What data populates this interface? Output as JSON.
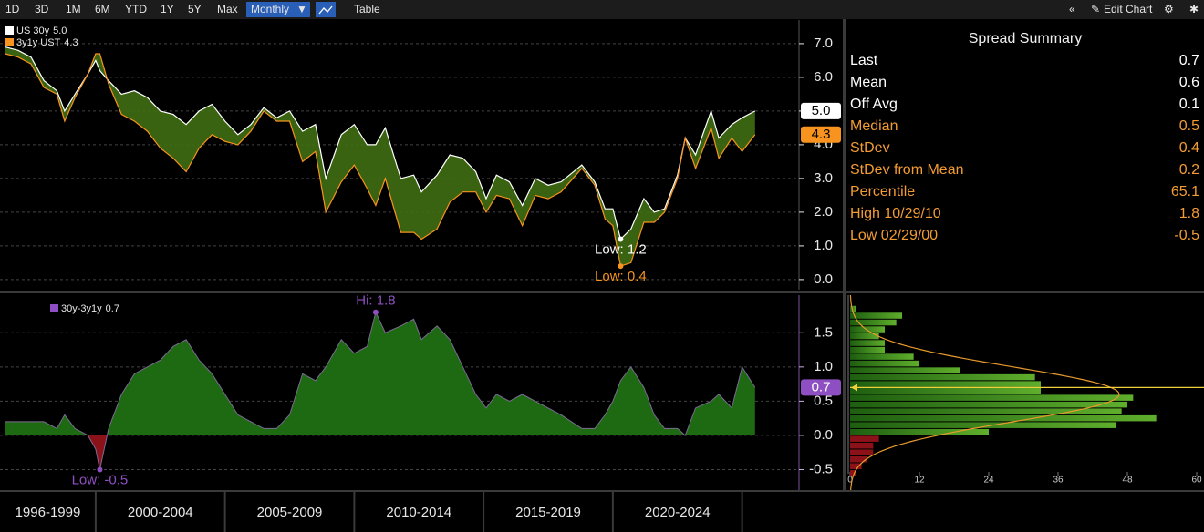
{
  "toolbar": {
    "periods": [
      "1D",
      "3D",
      "1M",
      "6M",
      "YTD",
      "1Y",
      "5Y",
      "Max"
    ],
    "frequency": "Monthly",
    "view": "Table",
    "edit": "Edit Chart"
  },
  "summary": {
    "title": "Spread Summary",
    "rows": [
      {
        "label": "Last",
        "value": 0.7,
        "color": "#ffffff"
      },
      {
        "label": "Mean",
        "value": 0.6,
        "color": "#ffffff"
      },
      {
        "label": "Off Avg",
        "value": 0.1,
        "color": "#ffffff"
      },
      {
        "label": "Median",
        "value": 0.5,
        "color": "#f39c34"
      },
      {
        "label": "StDev",
        "value": 0.4,
        "color": "#f39c34"
      },
      {
        "label": "StDev from Mean",
        "value": 0.2,
        "color": "#f39c34"
      },
      {
        "label": "Percentile",
        "value": 65.1,
        "color": "#f39c34"
      },
      {
        "label": "High 10/29/10",
        "value": 1.8,
        "color": "#f39c34"
      },
      {
        "label": "Low 02/29/00",
        "value": -0.5,
        "color": "#f39c34"
      }
    ]
  },
  "chart_data": [
    {
      "type": "line",
      "x": [
        1996.5,
        1997.0,
        1997.5,
        1998.0,
        1998.5,
        1998.8,
        1999.2,
        1999.7,
        2000.0,
        2000.16,
        2000.5,
        2001.0,
        2001.5,
        2002.0,
        2002.5,
        2003.0,
        2003.5,
        2004.0,
        2004.5,
        2005.0,
        2005.5,
        2006.0,
        2006.5,
        2007.0,
        2007.5,
        2008.0,
        2008.5,
        2008.9,
        2009.5,
        2010.0,
        2010.5,
        2010.83,
        2011.2,
        2011.8,
        2012.3,
        2012.6,
        2013.2,
        2013.7,
        2014.2,
        2014.7,
        2015.1,
        2015.5,
        2016.0,
        2016.5,
        2017.0,
        2017.5,
        2018.0,
        2018.8,
        2019.3,
        2019.7,
        2020.0,
        2020.3,
        2020.7,
        2021.2,
        2021.6,
        2022.0,
        2022.5,
        2022.8,
        2023.2,
        2023.8,
        2024.1,
        2024.6,
        2025.0,
        2025.5
      ],
      "xlim": [
        1996.3,
        2027.2
      ],
      "xticks": [
        2000,
        2005,
        2010,
        2015,
        2020,
        2025
      ],
      "period_labels": [
        "1996-1999",
        "2000-2004",
        "2005-2009",
        "2010-2014",
        "2015-2019",
        "2020-2024"
      ],
      "ylim": [
        -0.3,
        7.7
      ],
      "yticks": [
        {
          "value": 0,
          "label": "0.0"
        },
        {
          "value": 1,
          "label": "1.0"
        },
        {
          "value": 2,
          "label": "2.0"
        },
        {
          "value": 3,
          "label": "3.0"
        },
        {
          "value": 4,
          "label": "4.0"
        },
        {
          "value": 5,
          "label": "5.0"
        },
        {
          "value": 6,
          "label": "6.0"
        },
        {
          "value": 7,
          "label": "7.0"
        }
      ],
      "grid": true,
      "fill_color": "#3f6e12",
      "series": [
        {
          "name": "US 30y",
          "color": "#ffffff",
          "last_label": "5.0",
          "low_label": "Low: 1.2",
          "values": [
            6.9,
            6.8,
            6.6,
            5.9,
            5.6,
            5.0,
            5.5,
            6.1,
            6.5,
            6.2,
            5.9,
            5.5,
            5.6,
            5.4,
            5.0,
            4.9,
            4.6,
            5.0,
            5.2,
            4.7,
            4.3,
            4.6,
            5.1,
            4.8,
            5.0,
            4.4,
            4.6,
            3.0,
            4.3,
            4.6,
            4.0,
            4.0,
            4.5,
            3.0,
            3.1,
            2.6,
            3.1,
            3.7,
            3.6,
            3.2,
            2.4,
            3.1,
            2.9,
            2.2,
            3.0,
            2.8,
            2.9,
            3.4,
            2.9,
            2.1,
            2.1,
            1.2,
            1.5,
            2.4,
            2.0,
            2.1,
            3.1,
            4.2,
            3.7,
            5.0,
            4.2,
            4.6,
            4.8,
            5.0
          ]
        },
        {
          "name": "3y1y UST",
          "color": "#f7931e",
          "last_label": "4.3",
          "low_label": "Low: 0.4",
          "values": [
            6.7,
            6.6,
            6.4,
            5.7,
            5.5,
            4.7,
            5.4,
            6.1,
            6.7,
            6.7,
            5.8,
            4.9,
            4.7,
            4.4,
            3.9,
            3.6,
            3.2,
            3.9,
            4.3,
            4.1,
            4.0,
            4.4,
            5.0,
            4.7,
            4.7,
            3.5,
            3.8,
            2.0,
            2.9,
            3.4,
            2.7,
            2.2,
            3.0,
            1.4,
            1.4,
            1.2,
            1.5,
            2.3,
            2.6,
            2.6,
            2.0,
            2.5,
            2.4,
            1.6,
            2.5,
            2.4,
            2.6,
            3.3,
            2.8,
            1.8,
            1.6,
            0.4,
            0.5,
            1.7,
            1.7,
            2.0,
            3.0,
            4.2,
            3.3,
            4.5,
            3.6,
            4.2,
            3.8,
            4.3
          ]
        }
      ]
    },
    {
      "type": "area",
      "ylim": [
        -0.8,
        2.05
      ],
      "yticks": [
        {
          "value": -0.5,
          "label": "-0.5"
        },
        {
          "value": 0,
          "label": "0.0"
        },
        {
          "value": 0.5,
          "label": "0.5"
        },
        {
          "value": 1,
          "label": "1.0"
        },
        {
          "value": 1.5,
          "label": "1.5"
        }
      ],
      "grid": true,
      "positive_color": "#1d6a12",
      "negative_color": "#8a1218",
      "series": [
        {
          "name": "30y-3y1y",
          "color": "#8e4fc2",
          "last_label": "0.7",
          "high_label": "Hi: 1.8",
          "low_label": "Low: -0.5",
          "values": [
            0.2,
            0.2,
            0.2,
            0.2,
            0.1,
            0.3,
            0.1,
            0.0,
            -0.2,
            -0.5,
            0.1,
            0.6,
            0.9,
            1.0,
            1.1,
            1.3,
            1.4,
            1.1,
            0.9,
            0.6,
            0.3,
            0.2,
            0.1,
            0.1,
            0.3,
            0.9,
            0.8,
            1.0,
            1.4,
            1.2,
            1.3,
            1.8,
            1.5,
            1.6,
            1.7,
            1.4,
            1.6,
            1.4,
            1.0,
            0.6,
            0.4,
            0.6,
            0.5,
            0.6,
            0.5,
            0.4,
            0.3,
            0.1,
            0.1,
            0.3,
            0.5,
            0.8,
            1.0,
            0.7,
            0.3,
            0.1,
            0.1,
            0.0,
            0.4,
            0.5,
            0.6,
            0.4,
            1.0,
            0.7
          ]
        }
      ]
    },
    {
      "type": "histogram",
      "orientation": "horizontal",
      "bins": [
        -0.6,
        -0.5,
        -0.4,
        -0.3,
        -0.2,
        -0.1,
        0,
        0.1,
        0.2,
        0.3,
        0.4,
        0.5,
        0.6,
        0.7,
        0.8,
        0.9,
        1.0,
        1.1,
        1.2,
        1.3,
        1.4,
        1.5,
        1.6,
        1.7,
        1.8,
        1.9
      ],
      "counts": [
        1,
        2,
        3,
        4,
        4,
        5,
        24,
        46,
        53,
        47,
        48,
        49,
        33,
        33,
        32,
        19,
        12,
        11,
        6,
        6,
        5,
        6,
        8,
        9,
        1
      ],
      "xlim": [
        0,
        60
      ],
      "xticks": [
        0,
        12,
        24,
        36,
        48,
        60
      ],
      "positive_color": "#3c9a1c",
      "negative_color": "#8a1218",
      "curve_color": "#e89a2c",
      "current_color": "#f2d03a"
    }
  ]
}
